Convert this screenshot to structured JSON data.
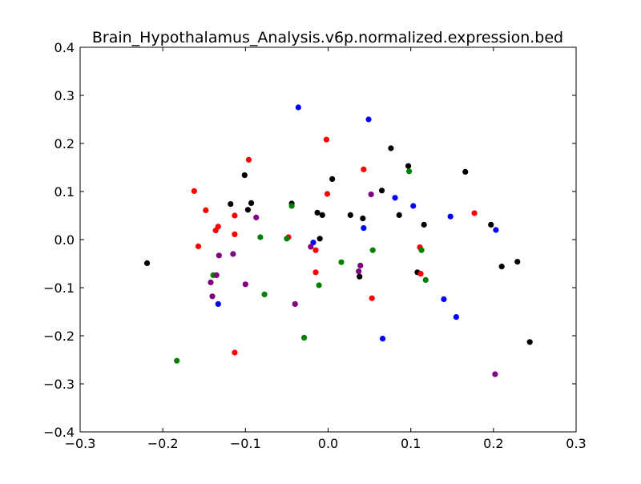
{
  "chart_data": {
    "type": "scatter",
    "title": "Brain_Hypothalamus_Analysis.v6p.normalized.expression.bed",
    "xlabel": "",
    "ylabel": "",
    "xlim": [
      -0.3,
      0.3
    ],
    "ylim": [
      -0.4,
      0.4
    ],
    "xticks": [
      -0.3,
      -0.2,
      -0.1,
      0.0,
      0.1,
      0.2,
      0.3
    ],
    "xtick_labels": [
      "−0.3",
      "−0.2",
      "−0.1",
      "0.0",
      "0.1",
      "0.2",
      "0.3"
    ],
    "yticks": [
      -0.4,
      -0.3,
      -0.2,
      -0.1,
      0.0,
      0.1,
      0.2,
      0.3,
      0.4
    ],
    "ytick_labels": [
      "−0.4",
      "−0.3",
      "−0.2",
      "−0.1",
      "0.0",
      "0.1",
      "0.2",
      "0.3",
      "0.4"
    ],
    "grid": false,
    "legend": null,
    "series": [
      {
        "color": "#0000ff",
        "points": [
          [
            -0.036,
            0.275
          ],
          [
            0.049,
            0.25
          ],
          [
            0.081,
            0.087
          ],
          [
            0.103,
            0.07
          ],
          [
            -0.018,
            -0.006
          ],
          [
            0.043,
            0.024
          ],
          [
            0.148,
            0.048
          ],
          [
            0.203,
            0.02
          ],
          [
            0.14,
            -0.124
          ],
          [
            0.155,
            -0.161
          ],
          [
            0.066,
            -0.206
          ],
          [
            -0.133,
            -0.134
          ]
        ]
      },
      {
        "color": "#000000",
        "points": [
          [
            -0.219,
            -0.049
          ],
          [
            -0.101,
            0.134
          ],
          [
            -0.118,
            0.074
          ],
          [
            -0.093,
            0.076
          ],
          [
            -0.097,
            0.062
          ],
          [
            -0.044,
            0.075
          ],
          [
            -0.013,
            0.056
          ],
          [
            -0.007,
            0.051
          ],
          [
            0.005,
            0.126
          ],
          [
            0.027,
            0.051
          ],
          [
            0.042,
            0.044
          ],
          [
            0.065,
            0.102
          ],
          [
            0.076,
            0.19
          ],
          [
            0.086,
            0.051
          ],
          [
            0.097,
            0.153
          ],
          [
            0.116,
            0.031
          ],
          [
            0.166,
            0.141
          ],
          [
            0.197,
            0.031
          ],
          [
            0.21,
            -0.056
          ],
          [
            0.229,
            -0.046
          ],
          [
            0.244,
            -0.213
          ],
          [
            -0.01,
            0.002
          ],
          [
            0.038,
            -0.077
          ],
          [
            0.108,
            -0.068
          ]
        ]
      },
      {
        "color": "#ff0000",
        "points": [
          [
            -0.162,
            0.101
          ],
          [
            -0.148,
            0.061
          ],
          [
            -0.157,
            -0.014
          ],
          [
            -0.133,
            0.027
          ],
          [
            -0.136,
            0.019
          ],
          [
            -0.113,
            0.05
          ],
          [
            -0.113,
            0.011
          ],
          [
            -0.096,
            0.166
          ],
          [
            -0.048,
            0.005
          ],
          [
            -0.002,
            0.208
          ],
          [
            -0.001,
            0.095
          ],
          [
            -0.015,
            -0.022
          ],
          [
            -0.015,
            -0.068
          ],
          [
            0.043,
            0.146
          ],
          [
            0.053,
            -0.122
          ],
          [
            0.111,
            -0.016
          ],
          [
            0.112,
            -0.071
          ],
          [
            0.177,
            0.055
          ],
          [
            -0.113,
            -0.235
          ]
        ]
      },
      {
        "color": "#008000",
        "points": [
          [
            -0.044,
            0.07
          ],
          [
            -0.082,
            0.005
          ],
          [
            -0.05,
            0.002
          ],
          [
            0.016,
            -0.047
          ],
          [
            -0.011,
            -0.095
          ],
          [
            -0.077,
            -0.114
          ],
          [
            0.098,
            0.142
          ],
          [
            0.054,
            -0.022
          ],
          [
            0.113,
            -0.022
          ],
          [
            0.118,
            -0.084
          ],
          [
            -0.139,
            -0.074
          ],
          [
            -0.029,
            -0.204
          ],
          [
            -0.183,
            -0.252
          ]
        ]
      },
      {
        "color": "#800080",
        "points": [
          [
            -0.087,
            0.046
          ],
          [
            0.052,
            0.094
          ],
          [
            -0.021,
            -0.015
          ],
          [
            -0.132,
            -0.033
          ],
          [
            -0.115,
            -0.03
          ],
          [
            -0.142,
            -0.089
          ],
          [
            -0.135,
            -0.074
          ],
          [
            -0.14,
            -0.118
          ],
          [
            -0.1,
            -0.093
          ],
          [
            0.037,
            -0.066
          ],
          [
            0.039,
            -0.054
          ],
          [
            -0.04,
            -0.134
          ],
          [
            0.202,
            -0.28
          ]
        ]
      }
    ]
  }
}
